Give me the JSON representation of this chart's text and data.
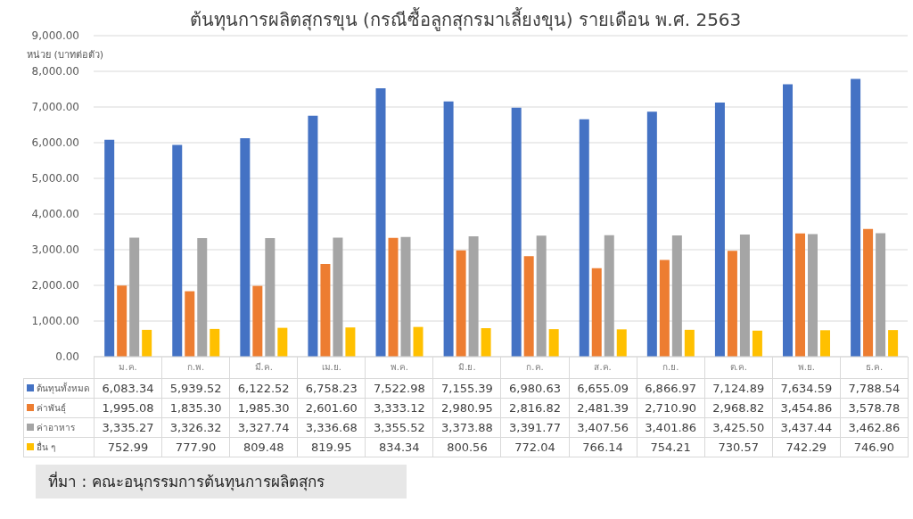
{
  "chart_data": {
    "type": "bar",
    "title": "ต้นทุนการผลิตสุกรขุน (กรณีซื้อลูกสุกรมาเลี้ยงขุน) รายเดือน พ.ศ. 2563",
    "ylabel": "หน่วย (บาทต่อตัว)",
    "categories": [
      "ม.ค.",
      "ก.พ.",
      "มี.ค.",
      "เม.ย.",
      "พ.ค.",
      "มิ.ย.",
      "ก.ค.",
      "ส.ค.",
      "ก.ย.",
      "ต.ค.",
      "พ.ย.",
      "ธ.ค."
    ],
    "series": [
      {
        "name": "ต้นทุนทั้งหมด",
        "color": "#4472c4",
        "values": [
          6083.34,
          5939.52,
          6122.52,
          6758.23,
          7522.98,
          7155.39,
          6980.63,
          6655.09,
          6866.97,
          7124.89,
          7634.59,
          7788.54
        ],
        "value_labels": [
          "6,083.34",
          "5,939.52",
          "6,122.52",
          "6,758.23",
          "7,522.98",
          "7,155.39",
          "6,980.63",
          "6,655.09",
          "6,866.97",
          "7,124.89",
          "7,634.59",
          "7,788.54"
        ]
      },
      {
        "name": "ค่าพันธุ์",
        "color": "#ed7d31",
        "values": [
          1995.08,
          1835.3,
          1985.3,
          2601.6,
          3333.12,
          2980.95,
          2816.82,
          2481.39,
          2710.9,
          2968.82,
          3454.86,
          3578.78
        ],
        "value_labels": [
          "1,995.08",
          "1,835.30",
          "1,985.30",
          "2,601.60",
          "3,333.12",
          "2,980.95",
          "2,816.82",
          "2,481.39",
          "2,710.90",
          "2,968.82",
          "3,454.86",
          "3,578.78"
        ]
      },
      {
        "name": "ค่าอาหาร",
        "color": "#a5a5a5",
        "values": [
          3335.27,
          3326.32,
          3327.74,
          3336.68,
          3355.52,
          3373.88,
          3391.77,
          3407.56,
          3401.86,
          3425.5,
          3437.44,
          3462.86
        ],
        "value_labels": [
          "3,335.27",
          "3,326.32",
          "3,327.74",
          "3,336.68",
          "3,355.52",
          "3,373.88",
          "3,391.77",
          "3,407.56",
          "3,401.86",
          "3,425.50",
          "3,437.44",
          "3,462.86"
        ]
      },
      {
        "name": "อื่น ๆ",
        "color": "#ffc000",
        "values": [
          752.99,
          777.9,
          809.48,
          819.95,
          834.34,
          800.56,
          772.04,
          766.14,
          754.21,
          730.57,
          742.29,
          746.9
        ],
        "value_labels": [
          "752.99",
          "777.90",
          "809.48",
          "819.95",
          "834.34",
          "800.56",
          "772.04",
          "766.14",
          "754.21",
          "730.57",
          "742.29",
          "746.90"
        ]
      }
    ],
    "ylim": [
      0,
      9000
    ],
    "yticks": [
      {
        "value": 0,
        "label": "0.00"
      },
      {
        "value": 1000,
        "label": "1,000.00"
      },
      {
        "value": 2000,
        "label": "2,000.00"
      },
      {
        "value": 3000,
        "label": "3,000.00"
      },
      {
        "value": 4000,
        "label": "4,000.00"
      },
      {
        "value": 5000,
        "label": "5,000.00"
      },
      {
        "value": 6000,
        "label": "6,000.00"
      },
      {
        "value": 7000,
        "label": "7,000.00"
      },
      {
        "value": 8000,
        "label": "8,000.00"
      },
      {
        "value": 9000,
        "label": "9,000.00"
      }
    ],
    "grid": "y",
    "legend": "bottom",
    "annotations": [
      "ที่มา : คณะอนุกรรมการต้นทุนการผลิตสุกร"
    ]
  }
}
